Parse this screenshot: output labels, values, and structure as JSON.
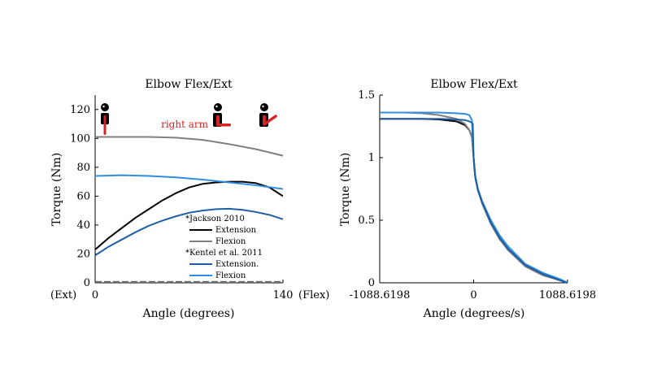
{
  "chart_data": [
    {
      "type": "line",
      "title": "Elbow Flex/Ext",
      "xlabel": "Angle (degrees)",
      "ylabel": "Torque (Nm)",
      "xlim": [
        0,
        140
      ],
      "ylim": [
        0,
        130
      ],
      "xticks": [
        "0",
        "140"
      ],
      "yticks": [
        "0",
        "20",
        "40",
        "60",
        "80",
        "100",
        "120"
      ],
      "x_end_labels": {
        "left": "(Ext)",
        "right": "(Flex)"
      },
      "annotation": "right arm",
      "legend_groups": [
        {
          "heading": "*Jackson 2010",
          "entries": [
            "Extension",
            "Flexion"
          ]
        },
        {
          "heading": "*Kentel et al. 2011",
          "entries": [
            "Extension.",
            "Flexion"
          ]
        }
      ],
      "series": [
        {
          "name": "Extension",
          "group": "*Jackson 2010",
          "color": "#000000",
          "x": [
            0,
            10,
            20,
            30,
            40,
            50,
            60,
            70,
            80,
            90,
            100,
            110,
            120,
            130,
            140
          ],
          "y": [
            23,
            31,
            38,
            45,
            51,
            57,
            62,
            66,
            68.5,
            69.5,
            70,
            70,
            69,
            66,
            60
          ]
        },
        {
          "name": "Flexion",
          "group": "*Jackson 2010",
          "color": "#808080",
          "x": [
            0,
            20,
            40,
            60,
            80,
            100,
            120,
            140
          ],
          "y": [
            101,
            101,
            101,
            100.5,
            99,
            96,
            92.5,
            88
          ]
        },
        {
          "name": "Extension.",
          "group": "*Kentel et al. 2011",
          "color": "#1f5fa6",
          "x": [
            0,
            10,
            20,
            30,
            40,
            50,
            60,
            70,
            80,
            90,
            100,
            110,
            120,
            130,
            140
          ],
          "y": [
            19,
            25,
            30,
            35,
            39.5,
            43,
            46,
            48.5,
            50,
            51,
            51.3,
            50.5,
            49,
            47,
            44
          ]
        },
        {
          "name": "Flexion",
          "group": "*Kentel et al. 2011",
          "color": "#2f8de4",
          "x": [
            0,
            20,
            40,
            60,
            80,
            100,
            120,
            140
          ],
          "y": [
            74,
            74.5,
            74,
            73,
            71.5,
            69.5,
            67.5,
            65
          ]
        }
      ]
    },
    {
      "type": "line",
      "title": "Elbow Flex/Ext",
      "xlabel": "Angle (degrees/s)",
      "ylabel": "Torque (Nm)",
      "xlim": [
        -1088.6198,
        1088.6198
      ],
      "ylim": [
        0,
        1.5
      ],
      "xticks": [
        "-1088.6198",
        "0",
        "1088.6198"
      ],
      "yticks": [
        "0",
        "0.5",
        "1",
        "1.5"
      ],
      "series": [
        {
          "color": "#000000",
          "x": [
            -1088.6198,
            -800,
            -600,
            -400,
            -200,
            -100,
            -50,
            -20,
            0,
            20,
            50,
            100,
            200,
            300,
            400,
            600,
            800,
            1000,
            1088.6198
          ],
          "y": [
            1.31,
            1.31,
            1.31,
            1.305,
            1.29,
            1.26,
            1.22,
            1.17,
            1.0,
            0.84,
            0.74,
            0.64,
            0.48,
            0.36,
            0.27,
            0.14,
            0.07,
            0.02,
            0.0
          ]
        },
        {
          "color": "#808080",
          "x": [
            -1088.6198,
            -800,
            -600,
            -400,
            -200,
            -100,
            -50,
            -20,
            0,
            20,
            50,
            100,
            200,
            300,
            400,
            600,
            800,
            1000,
            1088.6198
          ],
          "y": [
            1.36,
            1.36,
            1.355,
            1.34,
            1.31,
            1.27,
            1.22,
            1.16,
            1.0,
            0.84,
            0.74,
            0.63,
            0.47,
            0.35,
            0.26,
            0.13,
            0.06,
            0.02,
            0.0
          ]
        },
        {
          "color": "#2f8de4",
          "x": [
            -1088.6198,
            -800,
            -600,
            -400,
            -200,
            -100,
            -50,
            -20,
            0,
            20,
            50,
            100,
            200,
            300,
            400,
            600,
            800,
            1000,
            1088.6198
          ],
          "y": [
            1.36,
            1.36,
            1.36,
            1.36,
            1.355,
            1.35,
            1.34,
            1.3,
            1.0,
            0.85,
            0.75,
            0.65,
            0.5,
            0.38,
            0.29,
            0.15,
            0.08,
            0.03,
            0.0
          ]
        },
        {
          "color": "#1f5fa6",
          "x": [
            -1088.6198,
            -400,
            -200,
            -100,
            -50,
            -20,
            -10,
            0,
            10,
            20,
            50,
            100,
            200,
            300,
            400,
            600,
            800,
            1000,
            1088.6198
          ],
          "y": [
            1.31,
            1.31,
            1.305,
            1.3,
            1.29,
            1.28,
            1.27,
            1.0,
            0.9,
            0.84,
            0.74,
            0.64,
            0.48,
            0.36,
            0.27,
            0.14,
            0.07,
            0.02,
            0.0
          ]
        }
      ]
    }
  ]
}
